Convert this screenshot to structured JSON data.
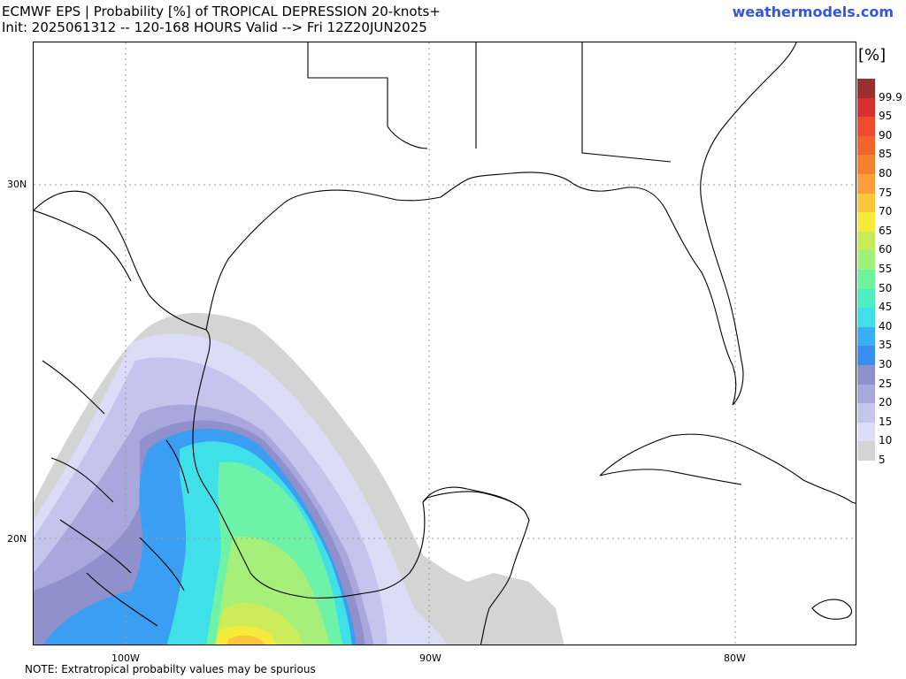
{
  "header": {
    "title_line1": "ECMWF EPS | Probability [%] of TROPICAL DEPRESSION 20-knots+",
    "title_line2": "Init: 2025061312 -- 120-168 HOURS Valid --> Fri 12Z20JUN2025",
    "site": "weathermodels.com"
  },
  "map": {
    "lat_labels": [
      "30N",
      "20N"
    ],
    "lon_labels": [
      "100W",
      "90W",
      "80W"
    ],
    "colors": {
      "land_outline": "#000000",
      "grid": "#9a9a9a"
    }
  },
  "legend": {
    "unit": "[%]",
    "levels": [
      "99.9",
      "95",
      "90",
      "85",
      "80",
      "75",
      "70",
      "65",
      "60",
      "55",
      "50",
      "45",
      "40",
      "35",
      "30",
      "25",
      "20",
      "15",
      "10",
      "5"
    ],
    "colors": [
      "#9b2f2f",
      "#d8302f",
      "#ee4a2c",
      "#f2642a",
      "#f58030",
      "#f9a03a",
      "#fac63a",
      "#f8ea3c",
      "#c7ec5a",
      "#9ef07a",
      "#6ef29c",
      "#4eeec0",
      "#3fe0e8",
      "#3ab0f4",
      "#3a8ef0",
      "#9090cc",
      "#a8a8dc",
      "#c4c4ec",
      "#dcdcf6",
      "#d4d4d4"
    ]
  },
  "footer": {
    "note": "NOTE: Extratropical probabilty values may be spurious"
  }
}
